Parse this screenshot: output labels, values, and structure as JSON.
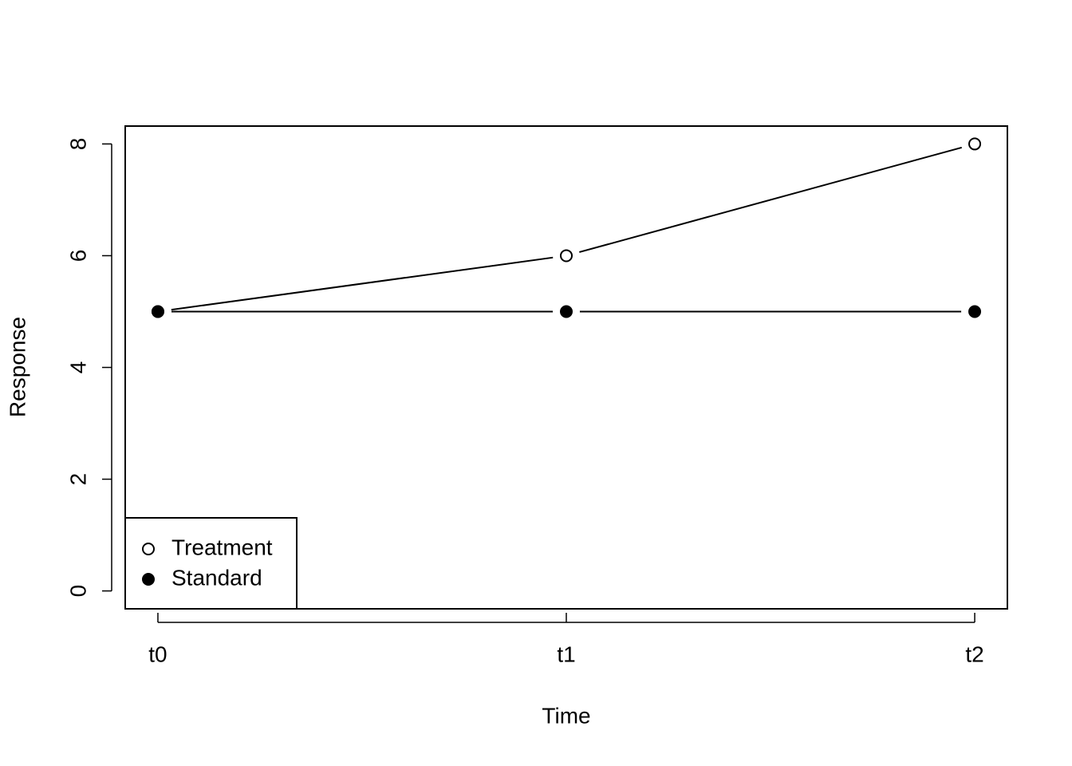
{
  "chart_data": {
    "type": "line",
    "xlabel": "Time",
    "ylabel": "Response",
    "categories": [
      "t0",
      "t1",
      "t2"
    ],
    "series": [
      {
        "name": "Treatment",
        "color": "#000000",
        "marker_fill": "#ffffff",
        "values": [
          5,
          6,
          8
        ]
      },
      {
        "name": "Standard",
        "color": "#000000",
        "marker_fill": "#000000",
        "values": [
          5,
          5,
          5
        ]
      }
    ],
    "ylim": [
      -0.32,
      8.32
    ],
    "yticks": [
      0,
      2,
      4,
      6,
      8
    ],
    "grid": false,
    "legend": "bottomleft"
  }
}
